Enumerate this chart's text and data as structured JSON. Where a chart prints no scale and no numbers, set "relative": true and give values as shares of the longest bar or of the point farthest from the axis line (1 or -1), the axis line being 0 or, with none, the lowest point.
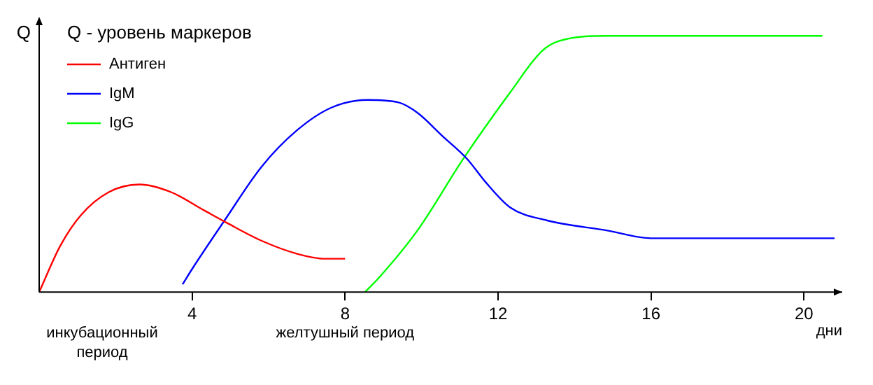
{
  "chart_data": {
    "type": "line",
    "relative": true,
    "ylabel": "Q",
    "xlabel": "дни",
    "legend_title": "Q - уровень маркеров",
    "legend": "top left",
    "grid": false,
    "marker": "none",
    "line_style": "solid",
    "xlim": [
      0,
      21
    ],
    "xticks": [
      4,
      8,
      12,
      16,
      20
    ],
    "annotations": [
      "инкубационный период",
      "желтушный период"
    ],
    "series": [
      {
        "name": "Антиген",
        "color": "#ff0000",
        "x": [
          0,
          0.55,
          1.09,
          1.82,
          2.62,
          3.45,
          4.3,
          4.91,
          5.82,
          6.73,
          7.48,
          8
        ],
        "values": [
          0,
          0.18,
          0.3,
          0.39,
          0.42,
          0.39,
          0.32,
          0.27,
          0.2,
          0.15,
          0.13,
          0.13
        ]
      },
      {
        "name": "IgM",
        "color": "#0000ff",
        "x": [
          3.75,
          4,
          4.85,
          5.82,
          6.73,
          7.64,
          8.59,
          9.4,
          9.89,
          10.54,
          11.19,
          11.67,
          12.32,
          13.27,
          14.86,
          16,
          17.35,
          20.8
        ],
        "values": [
          0.03,
          0.09,
          0.28,
          0.49,
          0.63,
          0.72,
          0.75,
          0.74,
          0.7,
          0.61,
          0.52,
          0.43,
          0.33,
          0.28,
          0.24,
          0.21,
          0.21,
          0.21
        ]
      },
      {
        "name": "IgG",
        "color": "#00ff00",
        "x": [
          8.52,
          8.91,
          9.89,
          11.09,
          12.32,
          13.14,
          13.59,
          14.86,
          17.35,
          20.48
        ],
        "values": [
          0,
          0.06,
          0.24,
          0.52,
          0.78,
          0.94,
          0.98,
          1,
          1,
          1
        ]
      }
    ]
  }
}
